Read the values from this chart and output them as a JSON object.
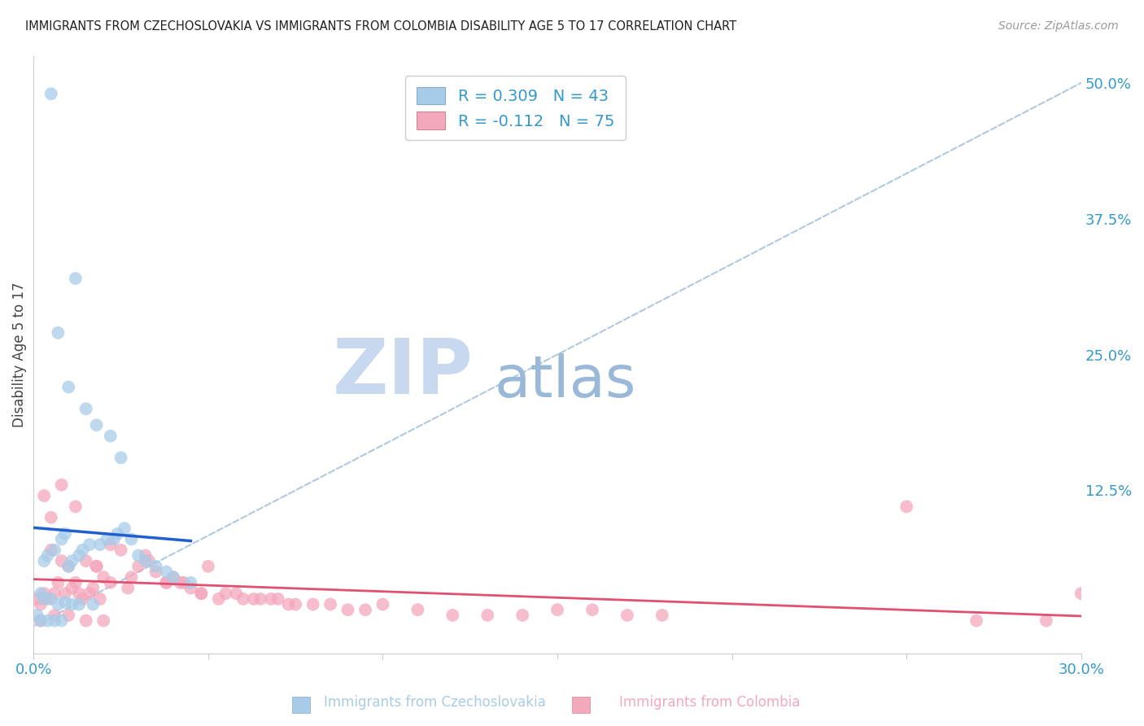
{
  "title": "IMMIGRANTS FROM CZECHOSLOVAKIA VS IMMIGRANTS FROM COLOMBIA DISABILITY AGE 5 TO 17 CORRELATION CHART",
  "source": "Source: ZipAtlas.com",
  "ylabel": "Disability Age 5 to 17",
  "xlim": [
    0.0,
    0.3
  ],
  "ylim": [
    -0.025,
    0.525
  ],
  "xticks": [
    0.0,
    0.05,
    0.1,
    0.15,
    0.2,
    0.25,
    0.3
  ],
  "xticklabels": [
    "0.0%",
    "",
    "",
    "",
    "",
    "",
    "30.0%"
  ],
  "yticks_right": [
    0.0,
    0.125,
    0.25,
    0.375,
    0.5
  ],
  "ytick_right_labels": [
    "",
    "12.5%",
    "25.0%",
    "37.5%",
    "50.0%"
  ],
  "grid_color": "#cccccc",
  "background_color": "#ffffff",
  "legend_label_1": "R = 0.309   N = 43",
  "legend_label_2": "R = -0.112   N = 75",
  "legend_color_1": "#a8cce8",
  "legend_color_2": "#f4a8bc",
  "scatter_color_1": "#a8cce8",
  "scatter_color_2": "#f4a8bc",
  "regression_color_1": "#2060cc",
  "regression_color_2": "#e05070",
  "ref_line_color": "#b0c8e0",
  "watermark_zip": "ZIP",
  "watermark_atlas": "atlas",
  "watermark_color_zip": "#c8d8ee",
  "watermark_color_atlas": "#9ab8d8",
  "ylabel_color": "#444444",
  "title_color": "#222222",
  "right_tick_color": "#3399cc",
  "bottom_tick_color": "#3399cc",
  "czecho_x": [
    0.005,
    0.012,
    0.007,
    0.01,
    0.015,
    0.018,
    0.022,
    0.025,
    0.003,
    0.004,
    0.006,
    0.008,
    0.009,
    0.01,
    0.011,
    0.013,
    0.014,
    0.016,
    0.019,
    0.021,
    0.023,
    0.024,
    0.026,
    0.028,
    0.03,
    0.032,
    0.035,
    0.038,
    0.04,
    0.045,
    0.002,
    0.003,
    0.005,
    0.007,
    0.009,
    0.011,
    0.013,
    0.017,
    0.001,
    0.002,
    0.004,
    0.006,
    0.008
  ],
  "czecho_y": [
    0.49,
    0.32,
    0.27,
    0.22,
    0.2,
    0.185,
    0.175,
    0.155,
    0.06,
    0.065,
    0.07,
    0.08,
    0.085,
    0.055,
    0.06,
    0.065,
    0.07,
    0.075,
    0.075,
    0.08,
    0.08,
    0.085,
    0.09,
    0.08,
    0.065,
    0.06,
    0.055,
    0.05,
    0.045,
    0.04,
    0.03,
    0.025,
    0.025,
    0.02,
    0.022,
    0.02,
    0.02,
    0.02,
    0.01,
    0.005,
    0.005,
    0.005,
    0.005
  ],
  "colombia_x": [
    0.001,
    0.002,
    0.003,
    0.004,
    0.005,
    0.006,
    0.007,
    0.008,
    0.009,
    0.01,
    0.011,
    0.012,
    0.013,
    0.014,
    0.015,
    0.016,
    0.017,
    0.018,
    0.019,
    0.02,
    0.022,
    0.025,
    0.027,
    0.03,
    0.032,
    0.035,
    0.038,
    0.04,
    0.042,
    0.045,
    0.048,
    0.05,
    0.055,
    0.06,
    0.065,
    0.07,
    0.075,
    0.08,
    0.085,
    0.09,
    0.095,
    0.1,
    0.11,
    0.12,
    0.13,
    0.14,
    0.15,
    0.16,
    0.17,
    0.18,
    0.003,
    0.005,
    0.008,
    0.012,
    0.018,
    0.022,
    0.028,
    0.033,
    0.038,
    0.043,
    0.048,
    0.053,
    0.058,
    0.063,
    0.068,
    0.073,
    0.25,
    0.27,
    0.29,
    0.3,
    0.002,
    0.006,
    0.01,
    0.015,
    0.02
  ],
  "colombia_y": [
    0.025,
    0.02,
    0.03,
    0.025,
    0.07,
    0.03,
    0.04,
    0.06,
    0.03,
    0.055,
    0.035,
    0.04,
    0.03,
    0.025,
    0.06,
    0.03,
    0.035,
    0.055,
    0.025,
    0.045,
    0.04,
    0.07,
    0.035,
    0.055,
    0.065,
    0.05,
    0.04,
    0.045,
    0.04,
    0.035,
    0.03,
    0.055,
    0.03,
    0.025,
    0.025,
    0.025,
    0.02,
    0.02,
    0.02,
    0.015,
    0.015,
    0.02,
    0.015,
    0.01,
    0.01,
    0.01,
    0.015,
    0.015,
    0.01,
    0.01,
    0.12,
    0.1,
    0.13,
    0.11,
    0.055,
    0.075,
    0.045,
    0.06,
    0.04,
    0.04,
    0.03,
    0.025,
    0.03,
    0.025,
    0.025,
    0.02,
    0.11,
    0.005,
    0.005,
    0.03,
    0.005,
    0.01,
    0.01,
    0.005,
    0.005
  ]
}
